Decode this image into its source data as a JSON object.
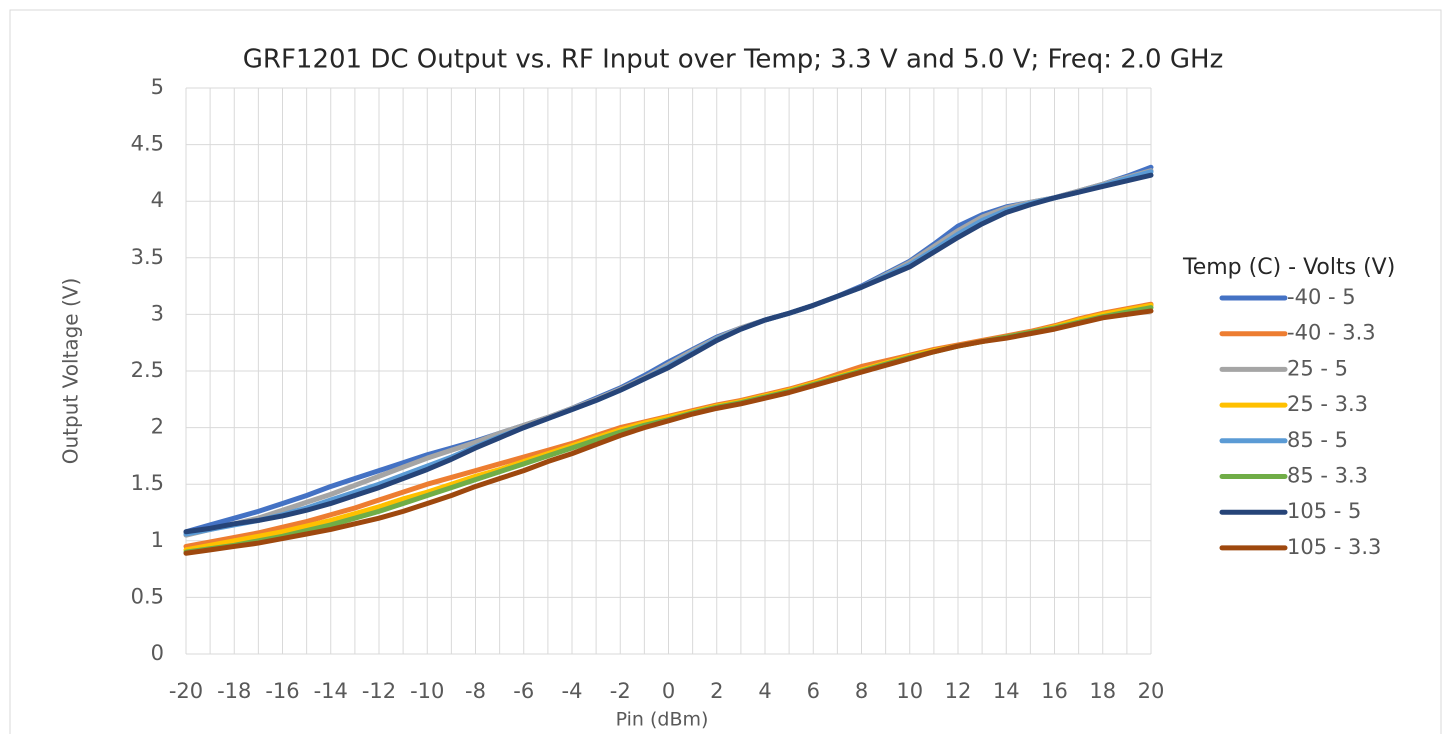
{
  "chart_data": {
    "type": "line",
    "title": "GRF1201 DC Output vs. RF Input over Temp; 3.3 V and 5.0 V; Freq: 2.0 GHz",
    "x_label": "Pin (dBm)",
    "y_label": "Output Voltage (V)",
    "legend_title": "Temp (C) - Volts (V)",
    "legend": "right",
    "grid": true,
    "x": [
      -20,
      -19,
      -18,
      -17,
      -16,
      -15,
      -14,
      -13,
      -12,
      -11,
      -10,
      -9,
      -8,
      -7,
      -6,
      -5,
      -4,
      -3,
      -2,
      -1,
      0,
      1,
      2,
      3,
      4,
      5,
      6,
      7,
      8,
      9,
      10,
      11,
      12,
      13,
      14,
      15,
      16,
      17,
      18,
      19,
      20
    ],
    "xlim": [
      -20,
      20
    ],
    "xticks": [
      -20,
      -18,
      -16,
      -14,
      -12,
      -10,
      -8,
      -6,
      -4,
      -2,
      0,
      2,
      4,
      6,
      8,
      10,
      12,
      14,
      16,
      18,
      20
    ],
    "ylim": [
      0,
      5
    ],
    "yticks": [
      0,
      0.5,
      1,
      1.5,
      2,
      2.5,
      3,
      3.5,
      4,
      4.5,
      5
    ],
    "series": [
      {
        "name": "-40 - 5",
        "color": "#4472c4",
        "values": [
          1.08,
          1.14,
          1.2,
          1.26,
          1.33,
          1.4,
          1.48,
          1.55,
          1.62,
          1.69,
          1.76,
          1.82,
          1.88,
          1.95,
          2.02,
          2.09,
          2.17,
          2.26,
          2.35,
          2.46,
          2.58,
          2.69,
          2.8,
          2.88,
          2.95,
          3.01,
          3.08,
          3.16,
          3.25,
          3.36,
          3.47,
          3.62,
          3.78,
          3.88,
          3.95,
          3.99,
          4.03,
          4.09,
          4.15,
          4.22,
          4.3
        ]
      },
      {
        "name": "-40 - 3.3",
        "color": "#ed7d31",
        "values": [
          0.95,
          0.99,
          1.03,
          1.07,
          1.12,
          1.17,
          1.23,
          1.29,
          1.36,
          1.43,
          1.5,
          1.56,
          1.62,
          1.68,
          1.74,
          1.8,
          1.86,
          1.93,
          2.0,
          2.05,
          2.1,
          2.15,
          2.2,
          2.24,
          2.29,
          2.34,
          2.4,
          2.47,
          2.54,
          2.59,
          2.64,
          2.69,
          2.73,
          2.77,
          2.81,
          2.85,
          2.9,
          2.96,
          3.01,
          3.05,
          3.09
        ]
      },
      {
        "name": "25 - 5",
        "color": "#a5a5a5",
        "values": [
          1.05,
          1.1,
          1.15,
          1.2,
          1.27,
          1.34,
          1.41,
          1.49,
          1.57,
          1.65,
          1.73,
          1.8,
          1.87,
          1.95,
          2.02,
          2.09,
          2.17,
          2.25,
          2.34,
          2.44,
          2.56,
          2.68,
          2.79,
          2.88,
          2.95,
          3.01,
          3.08,
          3.16,
          3.24,
          3.35,
          3.46,
          3.6,
          3.74,
          3.86,
          3.94,
          3.99,
          4.03,
          4.09,
          4.15,
          4.21,
          4.27
        ]
      },
      {
        "name": "25 - 3.3",
        "color": "#ffc000",
        "values": [
          0.92,
          0.96,
          1.0,
          1.04,
          1.08,
          1.13,
          1.18,
          1.24,
          1.3,
          1.37,
          1.43,
          1.5,
          1.57,
          1.63,
          1.7,
          1.77,
          1.84,
          1.91,
          1.98,
          2.04,
          2.09,
          2.14,
          2.19,
          2.23,
          2.28,
          2.33,
          2.39,
          2.45,
          2.51,
          2.57,
          2.63,
          2.68,
          2.72,
          2.76,
          2.8,
          2.84,
          2.89,
          2.95,
          3.0,
          3.04,
          3.08
        ]
      },
      {
        "name": "85 - 5",
        "color": "#5b9bd5",
        "values": [
          1.06,
          1.1,
          1.14,
          1.18,
          1.23,
          1.29,
          1.36,
          1.43,
          1.5,
          1.58,
          1.66,
          1.74,
          1.83,
          1.92,
          2.0,
          2.08,
          2.16,
          2.24,
          2.33,
          2.43,
          2.54,
          2.66,
          2.78,
          2.87,
          2.95,
          3.01,
          3.08,
          3.16,
          3.24,
          3.34,
          3.44,
          3.57,
          3.71,
          3.83,
          3.92,
          3.98,
          4.03,
          4.08,
          4.14,
          4.2,
          4.26
        ]
      },
      {
        "name": "85 - 3.3",
        "color": "#70ad47",
        "values": [
          0.9,
          0.93,
          0.96,
          1.0,
          1.04,
          1.09,
          1.14,
          1.2,
          1.26,
          1.33,
          1.4,
          1.47,
          1.54,
          1.61,
          1.68,
          1.75,
          1.82,
          1.89,
          1.96,
          2.02,
          2.07,
          2.13,
          2.18,
          2.22,
          2.27,
          2.32,
          2.38,
          2.44,
          2.5,
          2.56,
          2.62,
          2.67,
          2.72,
          2.76,
          2.8,
          2.84,
          2.88,
          2.93,
          2.98,
          3.02,
          3.06
        ]
      },
      {
        "name": "105 - 5",
        "color": "#264478",
        "values": [
          1.08,
          1.11,
          1.15,
          1.18,
          1.22,
          1.27,
          1.33,
          1.4,
          1.47,
          1.55,
          1.63,
          1.72,
          1.82,
          1.91,
          2.0,
          2.08,
          2.16,
          2.24,
          2.33,
          2.43,
          2.53,
          2.65,
          2.77,
          2.87,
          2.95,
          3.01,
          3.08,
          3.16,
          3.24,
          3.33,
          3.42,
          3.55,
          3.68,
          3.8,
          3.9,
          3.97,
          4.03,
          4.08,
          4.13,
          4.18,
          4.23
        ]
      },
      {
        "name": "105 - 3.3",
        "color": "#9e480e",
        "values": [
          0.89,
          0.92,
          0.95,
          0.98,
          1.02,
          1.06,
          1.1,
          1.15,
          1.2,
          1.26,
          1.33,
          1.4,
          1.48,
          1.55,
          1.62,
          1.7,
          1.77,
          1.85,
          1.93,
          2.0,
          2.06,
          2.12,
          2.17,
          2.21,
          2.26,
          2.31,
          2.37,
          2.43,
          2.49,
          2.55,
          2.61,
          2.67,
          2.72,
          2.76,
          2.79,
          2.83,
          2.87,
          2.92,
          2.97,
          3.0,
          3.03
        ]
      }
    ]
  }
}
